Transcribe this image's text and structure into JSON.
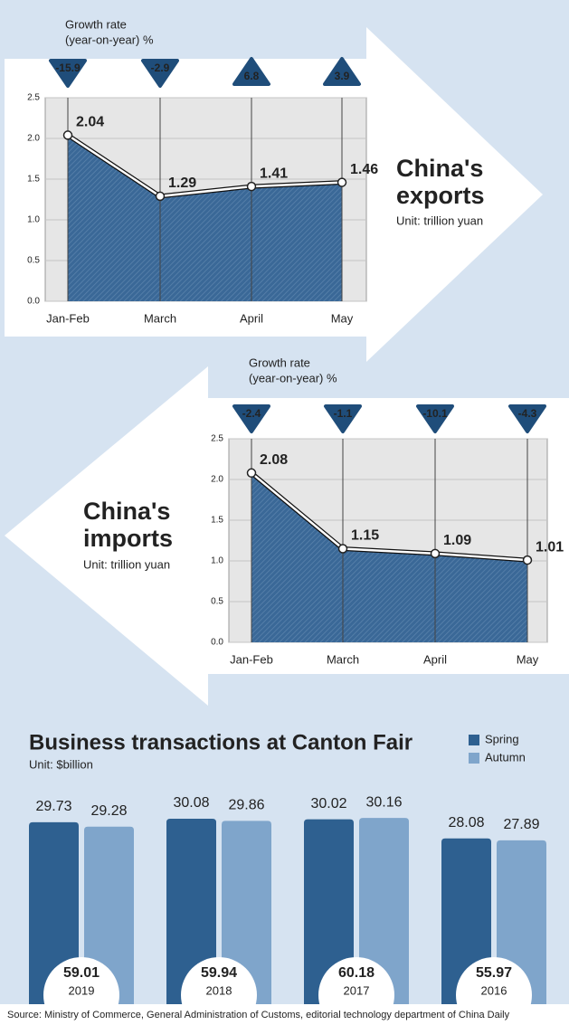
{
  "chart_data": [
    {
      "type": "area",
      "title": [
        "China's",
        "exports"
      ],
      "subtitle": "Unit: trillion yuan",
      "growth_label": [
        "Growth rate",
        "(year-on-year) %"
      ],
      "categories": [
        "Jan-Feb",
        "March",
        "April",
        "May"
      ],
      "values": [
        2.04,
        1.29,
        1.41,
        1.46
      ],
      "growth_rates": [
        -15.9,
        -2.9,
        6.8,
        3.9
      ],
      "color": "#2f5c8c",
      "growth_color": "#1f4d7a",
      "ylim": [
        0,
        2.5
      ],
      "yticks": [
        {
          "value": 0,
          "label": "0.0"
        },
        0.5,
        {
          "value": 1,
          "label": "1.0"
        },
        1.5,
        {
          "value": 2,
          "label": "2.0"
        },
        2.5
      ],
      "grid": true
    },
    {
      "type": "area",
      "title": [
        "China's",
        "imports"
      ],
      "subtitle": "Unit: trillion yuan",
      "growth_label": [
        "Growth rate",
        "(year-on-year) %"
      ],
      "categories": [
        "Jan-Feb",
        "March",
        "April",
        "May"
      ],
      "values": [
        2.08,
        1.15,
        1.09,
        1.01
      ],
      "growth_rates": [
        -2.4,
        -1.1,
        -10.1,
        -4.3
      ],
      "color": "#2f5c8c",
      "growth_color": "#1f4d7a",
      "ylim": [
        0,
        2.5
      ],
      "yticks": [
        {
          "value": 0,
          "label": "0.0"
        },
        0.5,
        {
          "value": 1,
          "label": "1.0"
        },
        1.5,
        {
          "value": 2,
          "label": "2.0"
        },
        2.5
      ],
      "grid": true
    },
    {
      "type": "bar",
      "title": "Business transactions at Canton Fair",
      "subtitle": "Unit: $billion",
      "categories": [
        "2019",
        "2018",
        "2017",
        "2016"
      ],
      "series": [
        {
          "name": "Spring",
          "color": "#2e6090",
          "values": [
            29.73,
            30.08,
            30.02,
            28.08
          ]
        },
        {
          "name": "Autumn",
          "color": "#7fa5cb",
          "values": [
            29.28,
            29.86,
            30.16,
            27.89
          ]
        }
      ],
      "totals": [
        59.01,
        59.94,
        60.18,
        55.97
      ],
      "ylim": [
        14,
        31
      ],
      "legend": "top-right"
    }
  ],
  "source": "Source: Ministry of Commerce, General Administration of Customs, editorial technology department of China Daily"
}
